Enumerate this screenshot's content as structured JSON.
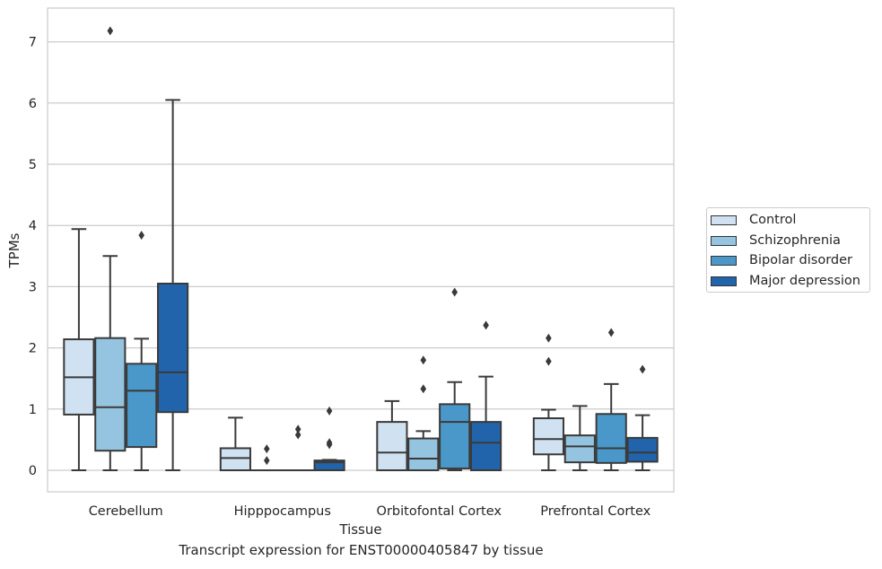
{
  "caption": "Transcript expression for ENST00000405847 by tissue",
  "legend": {
    "items": [
      {
        "label": "Control",
        "color": "#d0e1f2"
      },
      {
        "label": "Schizophrenia",
        "color": "#94c4df"
      },
      {
        "label": "Bipolar disorder",
        "color": "#4a98c9"
      },
      {
        "label": "Major depression",
        "color": "#2164ab"
      }
    ]
  },
  "chart_data": {
    "type": "box",
    "xlabel": "Tissue",
    "ylabel": "TPMs",
    "ylim": [
      -0.35,
      7.55
    ],
    "yticks": [
      0,
      1,
      2,
      3,
      4,
      5,
      6,
      7
    ],
    "grid": true,
    "legend_position": "right",
    "categories": [
      "Cerebellum",
      "Hipppocampus",
      "Orbitofontal Cortex",
      "Prefrontal Cortex"
    ],
    "series": [
      {
        "name": "Control",
        "color": "#d0e1f2",
        "boxes": [
          {
            "whislo": 0,
            "q1": 0.91,
            "med": 1.52,
            "q3": 2.14,
            "whishi": 3.94,
            "fliers": []
          },
          {
            "whislo": 0,
            "q1": 0,
            "med": 0.2,
            "q3": 0.36,
            "whishi": 0.86,
            "fliers": []
          },
          {
            "whislo": 0,
            "q1": 0,
            "med": 0.29,
            "q3": 0.79,
            "whishi": 1.13,
            "fliers": []
          },
          {
            "whislo": 0,
            "q1": 0.26,
            "med": 0.51,
            "q3": 0.85,
            "whishi": 0.99,
            "fliers": [
              1.78,
              2.16
            ]
          }
        ]
      },
      {
        "name": "Schizophrenia",
        "color": "#94c4df",
        "boxes": [
          {
            "whislo": 0,
            "q1": 0.32,
            "med": 1.03,
            "q3": 2.16,
            "whishi": 3.5,
            "fliers": [
              7.18
            ]
          },
          {
            "whislo": 0,
            "q1": 0,
            "med": 0,
            "q3": 0,
            "whishi": 0,
            "fliers": [
              0.16,
              0.35
            ]
          },
          {
            "whislo": 0,
            "q1": 0,
            "med": 0.19,
            "q3": 0.52,
            "whishi": 0.64,
            "fliers": [
              1.33,
              1.8
            ]
          },
          {
            "whislo": 0,
            "q1": 0.13,
            "med": 0.39,
            "q3": 0.57,
            "whishi": 1.05,
            "fliers": []
          }
        ]
      },
      {
        "name": "Bipolar disorder",
        "color": "#4a98c9",
        "boxes": [
          {
            "whislo": 0,
            "q1": 0.38,
            "med": 1.3,
            "q3": 1.74,
            "whishi": 2.15,
            "fliers": [
              3.84
            ]
          },
          {
            "whislo": 0,
            "q1": 0,
            "med": 0,
            "q3": 0,
            "whishi": 0,
            "fliers": [
              0.58,
              0.67
            ]
          },
          {
            "whislo": 0,
            "q1": 0.03,
            "med": 0.79,
            "q3": 1.08,
            "whishi": 1.44,
            "fliers": [
              2.91
            ]
          },
          {
            "whislo": 0,
            "q1": 0.12,
            "med": 0.36,
            "q3": 0.92,
            "whishi": 1.41,
            "fliers": [
              2.25
            ]
          }
        ]
      },
      {
        "name": "Major depression",
        "color": "#2164ab",
        "boxes": [
          {
            "whislo": 0,
            "q1": 0.95,
            "med": 1.6,
            "q3": 3.05,
            "whishi": 6.05,
            "fliers": []
          },
          {
            "whislo": 0,
            "q1": 0,
            "med": 0.13,
            "q3": 0.16,
            "whishi": 0.17,
            "fliers": [
              0.42,
              0.45,
              0.97
            ]
          },
          {
            "whislo": 0,
            "q1": 0,
            "med": 0.45,
            "q3": 0.79,
            "whishi": 1.53,
            "fliers": [
              2.37
            ]
          },
          {
            "whislo": 0,
            "q1": 0.14,
            "med": 0.29,
            "q3": 0.53,
            "whishi": 0.9,
            "fliers": [
              1.65
            ]
          }
        ]
      }
    ]
  }
}
